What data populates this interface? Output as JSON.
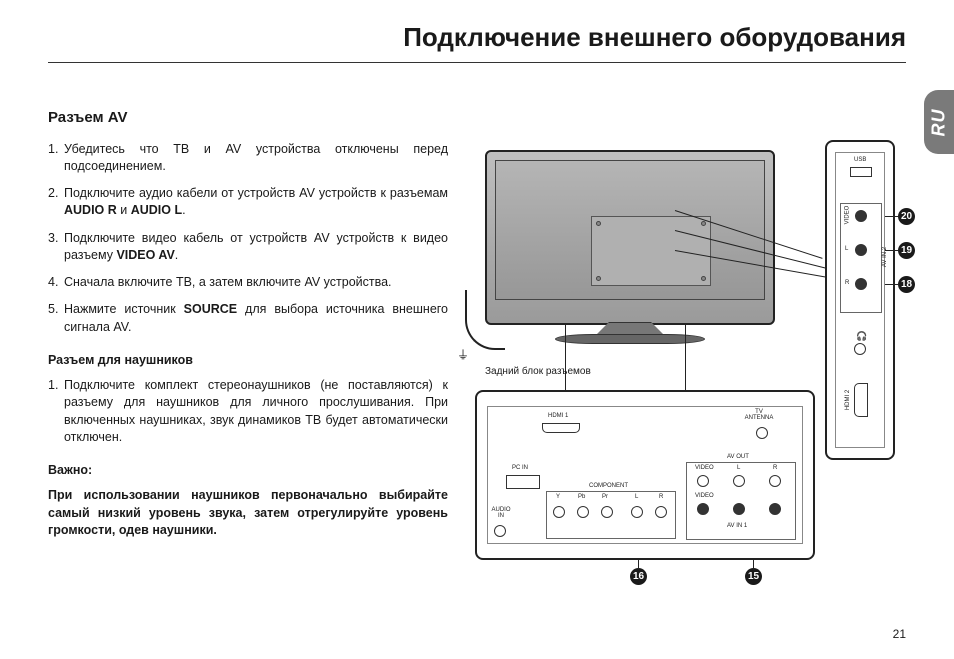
{
  "title": "Подключение внешнего оборудования",
  "lang_tab": "RU",
  "page_number": "21",
  "section_av": {
    "heading": "Разъем AV",
    "steps": [
      "Убедитесь что ТВ и AV устройства отключены перед подсоединением.",
      "Подключите аудио кабели от устройств AV устройств к разъемам <b>AUDIO R</b> и <b>AUDIO L</b>.",
      "Подключите видео кабель от устройств AV устройств к видео разъему <b>VIDEO AV</b>.",
      "Сначала включите ТВ, а затем включите AV устройства.",
      "Нажмите источник <b>SOURCE</b> для выбора источника внешнего сигнала AV."
    ]
  },
  "section_hp": {
    "heading": "Разъем для наушников",
    "step": "Подключите комплект стереонаушников (не поставляются) к разъему для наушников для личного прослушивания. При включенных наушниках, звук динамиков ТВ будет автоматически отключен."
  },
  "important": {
    "label": "Важно:",
    "text": "При использовании наушников первоначально выбирайте самый низкий уровень звука, затем отрегулируйте уровень громкости, одев наушники."
  },
  "diagram": {
    "caption": "Задний блок разъемов",
    "rear_labels": {
      "hdmi1": "HDMI 1",
      "tv_ant": "TV\nANTENNA",
      "pc_in": "PC IN",
      "audio_in": "AUDIO\nIN",
      "component": "COMPONENT",
      "y": "Y",
      "pb": "Pb",
      "pr": "Pr",
      "l": "L",
      "r": "R",
      "av_out": "AV OUT",
      "av_in1": "AV IN 1",
      "video": "VIDEO"
    },
    "side_labels": {
      "usb": "USB",
      "video": "VIDEO",
      "l": "L",
      "r": "R",
      "avin2": "AV IN 2",
      "hp": "🎧",
      "hdmi2": "HDMI 2"
    },
    "callouts": {
      "c15": "15",
      "c16": "16",
      "c18": "18",
      "c19": "19",
      "c20": "20"
    }
  },
  "colors": {
    "text": "#1a1a1a",
    "tab": "#7a7a7a",
    "rule": "#333333"
  }
}
